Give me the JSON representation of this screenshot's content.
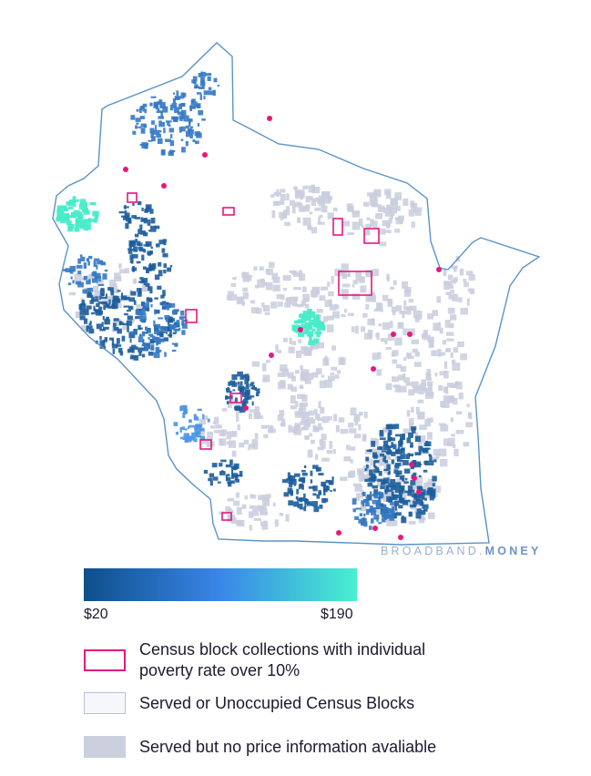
{
  "map": {
    "watermark": {
      "brand": "BROADBAND",
      "dot": ".",
      "suffix": "MONEY"
    },
    "colors": {
      "outline": "#5a93c8",
      "dark_blue": "#1c5d9c",
      "mid_blue": "#3579c4",
      "light_blue": "#4b95e6",
      "teal": "#48ecc8",
      "gray": "#c9cddd",
      "poverty": "#e8177e"
    }
  },
  "legend": {
    "scale_min": "$20",
    "scale_max": "$190",
    "poverty": "Census block collections with individual poverty rate over 10%",
    "served": "Served or Unoccupied Census Blocks",
    "no_price": "Served but no price information avaliable"
  }
}
